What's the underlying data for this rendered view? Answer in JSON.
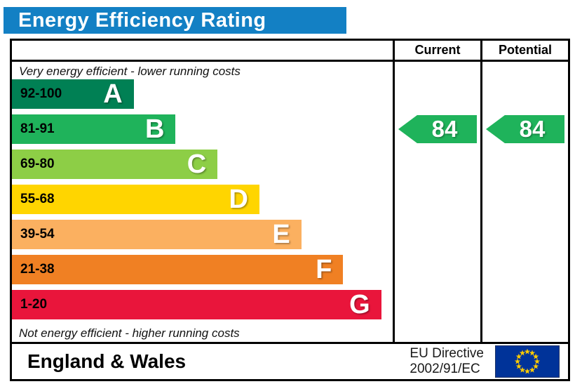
{
  "title": "Energy Efficiency Rating",
  "columns": {
    "current": "Current",
    "potential": "Potential"
  },
  "captions": {
    "top": "Very energy efficient - lower running costs",
    "bottom": "Not energy efficient - higher running costs"
  },
  "chart_data": {
    "type": "bar",
    "title": "Energy Efficiency Rating",
    "bands": [
      {
        "letter": "A",
        "range": "92-100",
        "score_min": 92,
        "score_max": 100,
        "color": "#008054",
        "width_pct": 32
      },
      {
        "letter": "B",
        "range": "81-91",
        "score_min": 81,
        "score_max": 91,
        "color": "#1fb35b",
        "width_pct": 43
      },
      {
        "letter": "C",
        "range": "69-80",
        "score_min": 69,
        "score_max": 80,
        "color": "#8dce46",
        "width_pct": 54
      },
      {
        "letter": "D",
        "range": "55-68",
        "score_min": 55,
        "score_max": 68,
        "color": "#ffd500",
        "width_pct": 65
      },
      {
        "letter": "E",
        "range": "39-54",
        "score_min": 39,
        "score_max": 54,
        "color": "#fbb060",
        "width_pct": 76
      },
      {
        "letter": "F",
        "range": "21-38",
        "score_min": 21,
        "score_max": 38,
        "color": "#f08023",
        "width_pct": 87
      },
      {
        "letter": "G",
        "range": "1-20",
        "score_min": 1,
        "score_max": 20,
        "color": "#e9153b",
        "width_pct": 97
      }
    ],
    "current": {
      "value": 84,
      "band": "B",
      "color": "#1fb35b"
    },
    "potential": {
      "value": 84,
      "band": "B",
      "color": "#1fb35b"
    },
    "legend_position": "top-right-columns",
    "grid": false
  },
  "footer": {
    "region": "England & Wales",
    "directive_line1": "EU Directive",
    "directive_line2": "2002/91/EC",
    "eu_flag": {
      "field_color": "#003399",
      "star_color": "#ffcc00",
      "star_count": 12
    }
  },
  "colors": {
    "title_bg": "#1380c4",
    "title_text": "#ffffff",
    "border": "#000000"
  }
}
